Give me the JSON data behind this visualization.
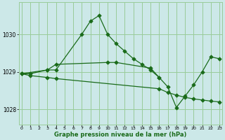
{
  "line1_x": [
    0,
    1,
    3,
    4,
    7,
    8,
    9,
    10,
    11,
    12,
    13,
    14,
    15,
    16
  ],
  "line1_y": [
    1028.95,
    1028.95,
    1029.05,
    1029.05,
    1030.0,
    1030.35,
    1030.5,
    1030.0,
    1029.75,
    1029.55,
    1029.35,
    1029.2,
    1029.05,
    1028.85
  ],
  "line2_x": [
    0,
    1,
    3,
    4,
    16,
    17,
    18,
    19,
    20,
    21,
    22,
    23
  ],
  "line2_y": [
    1028.95,
    1028.9,
    1028.85,
    1028.82,
    1028.55,
    1028.45,
    1028.38,
    1028.32,
    1028.28,
    1028.25,
    1028.22,
    1028.2
  ],
  "line3_x": [
    0,
    3,
    4,
    10,
    11,
    15,
    16,
    17,
    18,
    19,
    20,
    21,
    22,
    23
  ],
  "line3_y": [
    1028.95,
    1029.05,
    1029.2,
    1029.25,
    1029.25,
    1029.1,
    1028.85,
    1028.6,
    1028.05,
    1028.35,
    1028.65,
    1029.0,
    1029.4,
    1029.35
  ],
  "bg_color": "#cce8e8",
  "grid_color": "#99cc99",
  "line_color": "#1a6b1a",
  "xlabel": "Graphe pression niveau de la mer (hPa)",
  "ylim_min": 1027.6,
  "ylim_max": 1030.85,
  "xlim_min": -0.3,
  "xlim_max": 23.3,
  "yticks": [
    1028,
    1029,
    1030
  ],
  "xticks": [
    0,
    1,
    2,
    3,
    4,
    5,
    6,
    7,
    8,
    9,
    10,
    11,
    12,
    13,
    14,
    15,
    16,
    17,
    18,
    19,
    20,
    21,
    22,
    23
  ]
}
